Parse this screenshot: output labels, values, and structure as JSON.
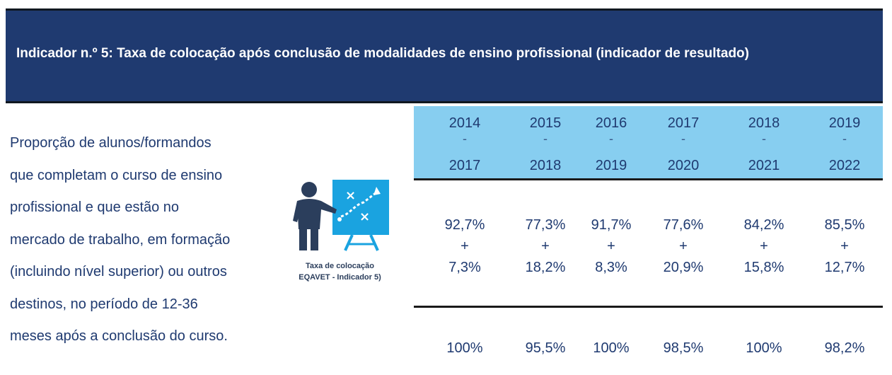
{
  "header": {
    "title": "Indicador n.º 5: Taxa de colocação após conclusão de modalidades de ensino profissional (indicador de resultado)"
  },
  "description": {
    "lines": [
      "Proporção de alunos/formandos",
      "que completam o curso de ensino",
      "profissional e que estão no",
      "mercado de trabalho, em formação",
      "(incluindo nível superior) ou outros",
      "destinos, no período de 12-36",
      "meses após a conclusão do curso."
    ]
  },
  "icon": {
    "name": "teacher-board-icon",
    "caption_line1": "Taxa de colocação",
    "caption_line2": "EQAVET - Indicador 5)"
  },
  "table": {
    "separator": "-",
    "plus": "+",
    "columns": [
      {
        "start": "2014",
        "end": "2017",
        "employed": "92,7%",
        "training": "7,3%",
        "total": "100%"
      },
      {
        "start": "2015",
        "end": "2018",
        "employed": "77,3%",
        "training": "18,2%",
        "total": "95,5%"
      },
      {
        "start": "2016",
        "end": "2019",
        "employed": "91,7%",
        "training": "8,3%",
        "total": "100%"
      },
      {
        "start": "2017",
        "end": "2020",
        "employed": "77,6%",
        "training": "20,9%",
        "total": "98,5%"
      },
      {
        "start": "2018",
        "end": "2021",
        "employed": "84,2%",
        "training": "15,8%",
        "total": "100%"
      },
      {
        "start": "2019",
        "end": "2022",
        "employed": "85,5%",
        "training": "12,7%",
        "total": "98,2%"
      }
    ]
  },
  "colors": {
    "header_bg": "#1f3a70",
    "band_bg": "#87cef0",
    "text": "#1f3a70",
    "icon_blue": "#1aa3e0",
    "icon_dark": "#2b3e5c"
  }
}
